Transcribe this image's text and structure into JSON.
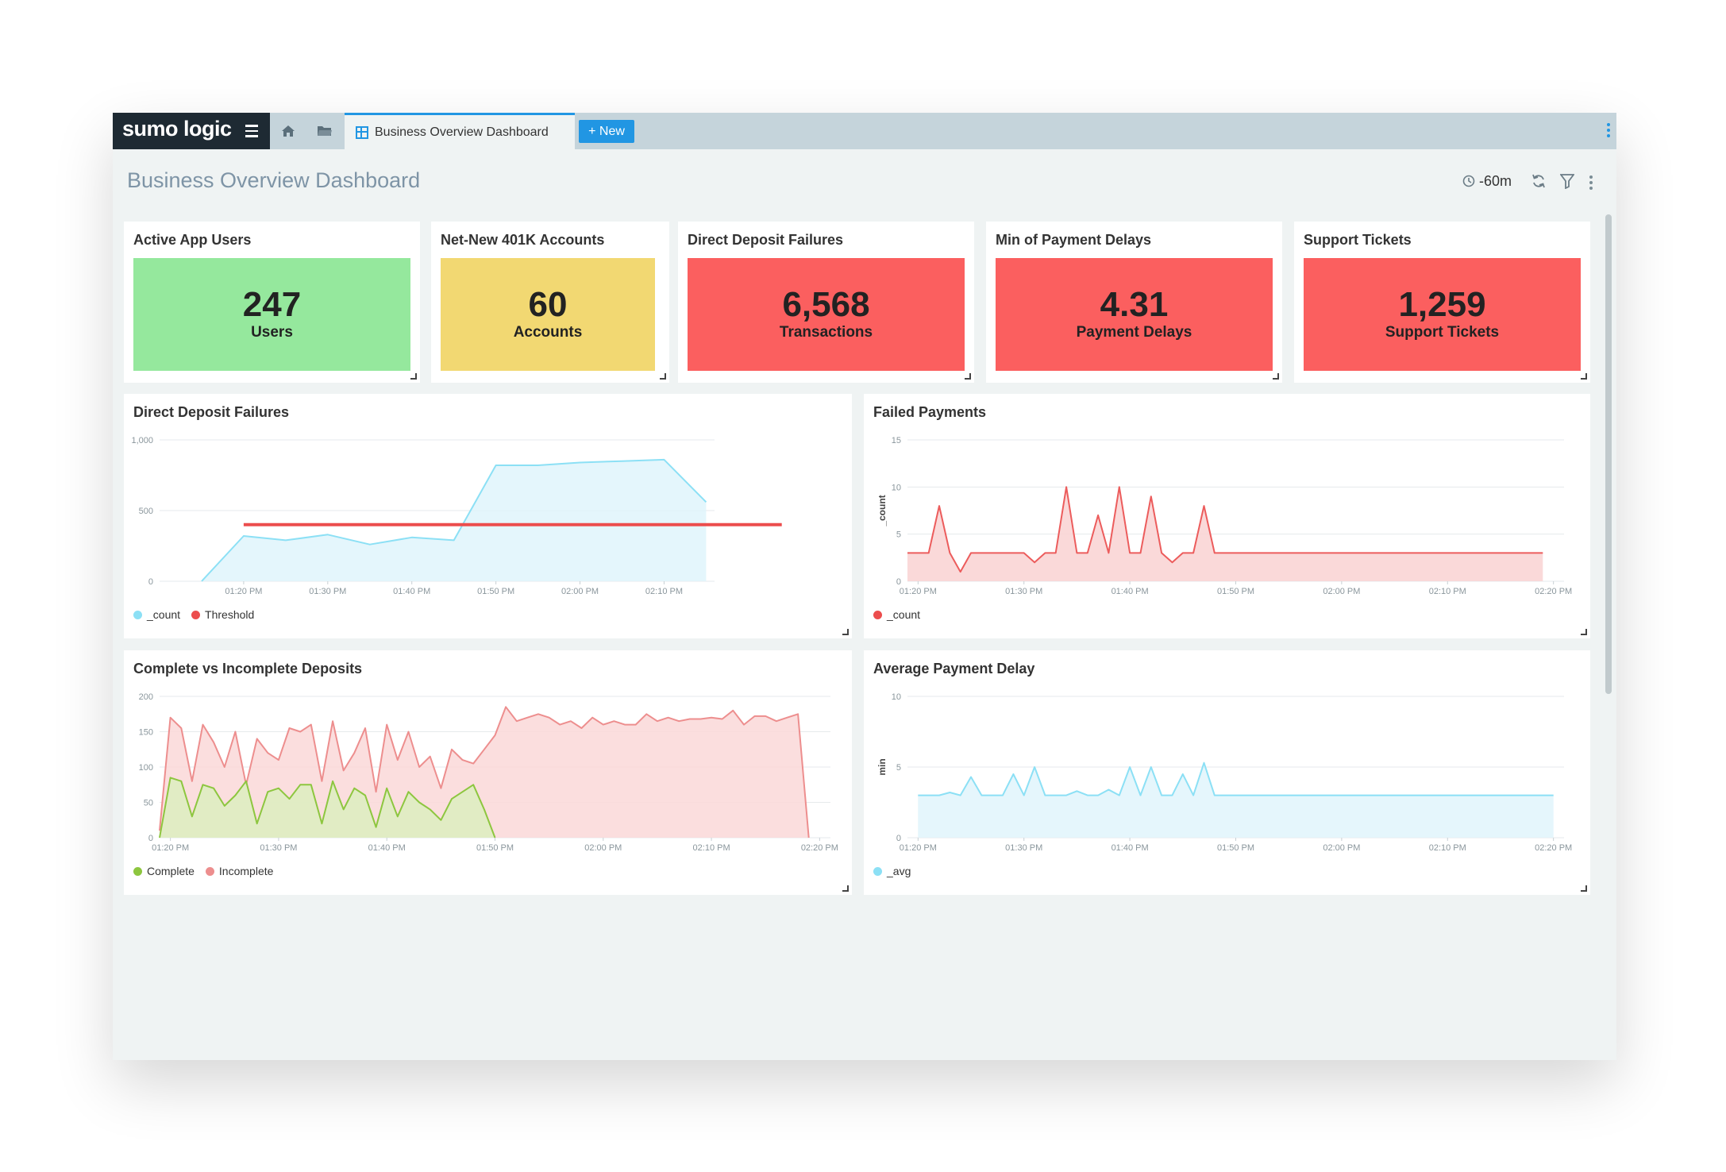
{
  "app": {
    "logo": "sumo logic",
    "tab_label": "Business Overview Dashboard",
    "new_label": "+ New"
  },
  "dashboard": {
    "title": "Business Overview Dashboard",
    "time_range": "-60m"
  },
  "colors": {
    "green": "#95e89d",
    "yellow": "#f2d872",
    "red": "#fb5f5f",
    "cyan": "#8ce0f5",
    "cyan_fill": "#dff4fb",
    "threshold": "#ec4d4d",
    "pink": "#ed8e8e",
    "pink_fill": "#fad8d8",
    "lime": "#8dc63f",
    "lime_fill": "#dcefc0"
  },
  "tiles": [
    {
      "title": "Active App Users",
      "value": "247",
      "unit": "Users",
      "color": "#95e89d"
    },
    {
      "title": "Net-New 401K Accounts",
      "value": "60",
      "unit": "Accounts",
      "color": "#f2d872"
    },
    {
      "title": "Direct Deposit Failures",
      "value": "6,568",
      "unit": "Transactions",
      "color": "#fb5f5f"
    },
    {
      "title": "Min of Payment Delays",
      "value": "4.31",
      "unit": "Payment Delays",
      "color": "#fb5f5f"
    },
    {
      "title": "Support Tickets",
      "value": "1,259",
      "unit": "Support Tickets",
      "color": "#fb5f5f"
    }
  ],
  "chart_data": [
    {
      "id": "deposit",
      "type": "area",
      "title": "Direct Deposit Failures",
      "ylim": [
        0,
        1000
      ],
      "y_ticks": [
        0,
        500,
        1000
      ],
      "y_tick_labels": [
        "0",
        "500",
        "1,000"
      ],
      "x_tick_labels": [
        "01:20 PM",
        "01:30 PM",
        "01:40 PM",
        "01:50 PM",
        "02:00 PM",
        "02:10 PM"
      ],
      "x_tick_minutes": [
        20,
        30,
        40,
        50,
        60,
        70
      ],
      "series": [
        {
          "name": "_count",
          "kind": "area",
          "color": "#8ce0f5",
          "fill": "#dff4fb",
          "x": [
            15,
            20,
            25,
            30,
            35,
            40,
            45,
            50,
            55,
            60,
            65,
            70,
            75
          ],
          "values": [
            0,
            320,
            290,
            330,
            260,
            310,
            290,
            820,
            820,
            840,
            850,
            860,
            560
          ]
        },
        {
          "name": "Threshold",
          "kind": "line",
          "color": "#ec4d4d",
          "x": [
            20,
            84
          ],
          "values": [
            400,
            400
          ]
        }
      ],
      "xlim": [
        10,
        76
      ]
    },
    {
      "id": "failed",
      "type": "area",
      "title": "Failed Payments",
      "ylabel": "_count",
      "ylim": [
        0,
        15
      ],
      "y_ticks": [
        0,
        5,
        10,
        15
      ],
      "y_tick_labels": [
        "0",
        "5",
        "10",
        "15"
      ],
      "x_tick_labels": [
        "01:20 PM",
        "01:30 PM",
        "01:40 PM",
        "01:50 PM",
        "02:00 PM",
        "02:10 PM",
        "02:20 PM"
      ],
      "x_tick_minutes": [
        20,
        30,
        40,
        50,
        60,
        70,
        80
      ],
      "xlim": [
        19,
        81
      ],
      "series": [
        {
          "name": "_count",
          "kind": "area",
          "color": "#ec5c5c",
          "fill": "#f9d2d2",
          "x": [
            19,
            20,
            21,
            22,
            23,
            24,
            25,
            26,
            27,
            28,
            29,
            30,
            31,
            32,
            33,
            34,
            35,
            36,
            37,
            38,
            39,
            40,
            41,
            42,
            43,
            44,
            45,
            46,
            47,
            48,
            49,
            50,
            55,
            60,
            65,
            70,
            75,
            79
          ],
          "values": [
            3,
            3,
            3,
            8,
            3,
            1,
            3,
            3,
            3,
            3,
            3,
            3,
            2,
            3,
            3,
            10,
            3,
            3,
            7,
            3,
            10,
            3,
            3,
            9,
            3,
            2,
            3,
            3,
            8,
            3,
            3,
            3,
            3,
            3,
            3,
            3,
            3,
            3
          ]
        }
      ]
    },
    {
      "id": "complete",
      "type": "area",
      "title": "Complete vs Incomplete Deposits",
      "ylim": [
        0,
        200
      ],
      "y_ticks": [
        0,
        50,
        100,
        150,
        200
      ],
      "y_tick_labels": [
        "0",
        "50",
        "100",
        "150",
        "200"
      ],
      "x_tick_labels": [
        "01:20 PM",
        "01:30 PM",
        "01:40 PM",
        "01:50 PM",
        "02:00 PM",
        "02:10 PM",
        "02:20 PM"
      ],
      "x_tick_minutes": [
        20,
        30,
        40,
        50,
        60,
        70,
        80
      ],
      "xlim": [
        19,
        81
      ],
      "series": [
        {
          "name": "Incomplete",
          "kind": "area",
          "color": "#ed8e8e",
          "fill": "#fad8d8",
          "x": [
            19,
            20,
            21,
            22,
            23,
            24,
            25,
            26,
            27,
            28,
            29,
            30,
            31,
            32,
            33,
            34,
            35,
            36,
            37,
            38,
            39,
            40,
            41,
            42,
            43,
            44,
            45,
            46,
            47,
            48,
            49,
            50,
            51,
            52,
            53,
            54,
            55,
            56,
            57,
            58,
            59,
            60,
            61,
            62,
            63,
            64,
            65,
            66,
            67,
            68,
            69,
            70,
            71,
            72,
            73,
            74,
            75,
            76,
            77,
            78,
            79
          ],
          "values": [
            10,
            170,
            155,
            80,
            160,
            135,
            100,
            150,
            75,
            140,
            120,
            110,
            155,
            150,
            160,
            80,
            165,
            95,
            120,
            155,
            65,
            160,
            110,
            150,
            100,
            115,
            70,
            125,
            110,
            105,
            125,
            145,
            185,
            165,
            170,
            175,
            170,
            160,
            165,
            155,
            170,
            160,
            165,
            160,
            160,
            175,
            165,
            170,
            165,
            168,
            168,
            170,
            168,
            180,
            160,
            172,
            172,
            165,
            170,
            175,
            0
          ]
        },
        {
          "name": "Complete",
          "kind": "area",
          "color": "#8dc63f",
          "fill": "#dcefc0",
          "x": [
            19,
            20,
            21,
            22,
            23,
            24,
            25,
            26,
            27,
            28,
            29,
            30,
            31,
            32,
            33,
            34,
            35,
            36,
            37,
            38,
            39,
            40,
            41,
            42,
            43,
            44,
            45,
            46,
            47,
            48,
            49,
            50
          ],
          "values": [
            0,
            85,
            80,
            30,
            75,
            70,
            45,
            60,
            80,
            20,
            65,
            70,
            55,
            75,
            75,
            20,
            80,
            40,
            70,
            60,
            15,
            70,
            30,
            65,
            50,
            40,
            25,
            55,
            65,
            75,
            40,
            0
          ]
        }
      ]
    },
    {
      "id": "avgdelay",
      "type": "area",
      "title": "Average Payment Delay",
      "ylabel": "min",
      "ylim": [
        0,
        10
      ],
      "y_ticks": [
        0,
        5,
        10
      ],
      "y_tick_labels": [
        "0",
        "5",
        "10"
      ],
      "x_tick_labels": [
        "01:20 PM",
        "01:30 PM",
        "01:40 PM",
        "01:50 PM",
        "02:00 PM",
        "02:10 PM",
        "02:20 PM"
      ],
      "x_tick_minutes": [
        20,
        30,
        40,
        50,
        60,
        70,
        80
      ],
      "xlim": [
        19,
        81
      ],
      "series": [
        {
          "name": "_avg",
          "kind": "area",
          "color": "#8ce0f5",
          "fill": "#e0f5fc",
          "x": [
            20,
            21,
            22,
            23,
            24,
            25,
            26,
            27,
            28,
            29,
            30,
            31,
            32,
            33,
            34,
            35,
            36,
            37,
            38,
            39,
            40,
            41,
            42,
            43,
            44,
            45,
            46,
            47,
            48,
            49,
            50,
            55,
            60,
            65,
            70,
            75,
            80
          ],
          "values": [
            3,
            3,
            3,
            3.2,
            3,
            4.3,
            3,
            3,
            3,
            4.5,
            3,
            5,
            3,
            3,
            3,
            3.3,
            3,
            3,
            3.4,
            3,
            5,
            3,
            5,
            3,
            3,
            4.5,
            3,
            5.3,
            3,
            3,
            3,
            3,
            3,
            3,
            3,
            3,
            3
          ]
        }
      ]
    }
  ]
}
